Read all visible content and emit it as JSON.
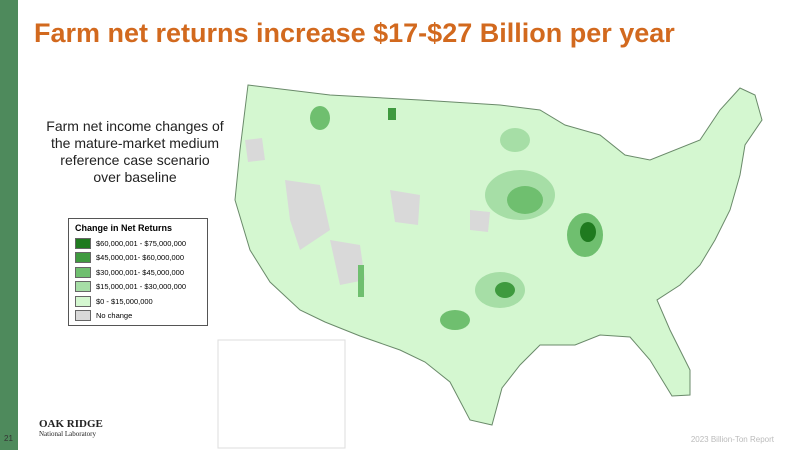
{
  "slide": {
    "title": "Farm net returns increase $17-$27 Billion per year",
    "description": "Farm net income changes of the mature-market medium reference case scenario over baseline",
    "number": "21",
    "footer": "2023 Billion-Ton Report",
    "logo": {
      "line1": "OAK RIDGE",
      "line2": "National Laboratory"
    }
  },
  "legend": {
    "title": "Change in Net Returns",
    "items": [
      {
        "label": "$60,000,001 - $75,000,000",
        "color": "#1f7a1f"
      },
      {
        "label": "$45,000,001- $60,000,000",
        "color": "#3f9a3f"
      },
      {
        "label": "$30,000,001- $45,000,000",
        "color": "#6fbf6f"
      },
      {
        "label": "$15,000,001 - $30,000,000",
        "color": "#a6dea6"
      },
      {
        "label": "$0 - $15,000,000",
        "color": "#d4f7d0"
      },
      {
        "label": "No change",
        "color": "#d9d9d9"
      }
    ]
  }
}
